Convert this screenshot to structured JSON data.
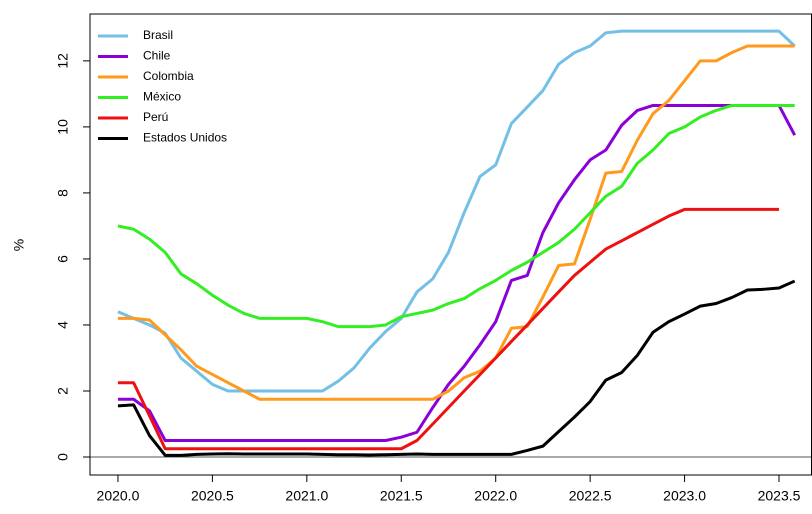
{
  "chart_data": {
    "type": "line",
    "y_label": "%",
    "x": [
      2020,
      2020.083,
      2020.167,
      2020.25,
      2020.333,
      2020.417,
      2020.5,
      2020.583,
      2020.667,
      2020.75,
      2020.833,
      2020.917,
      2021,
      2021.083,
      2021.167,
      2021.25,
      2021.333,
      2021.417,
      2021.5,
      2021.583,
      2021.667,
      2021.75,
      2021.833,
      2021.917,
      2022,
      2022.083,
      2022.167,
      2022.25,
      2022.333,
      2022.417,
      2022.5,
      2022.583,
      2022.667,
      2022.75,
      2022.833,
      2022.917,
      2023,
      2023.083,
      2023.167,
      2023.25,
      2023.333,
      2023.417,
      2023.5,
      2023.583
    ],
    "series": [
      {
        "name": "Brasil",
        "color": "#74bfe6",
        "values": [
          4.4,
          4.2,
          4.0,
          3.75,
          3.0,
          2.6,
          2.2,
          2.0,
          2.0,
          2.0,
          2.0,
          2.0,
          2.0,
          2.0,
          2.3,
          2.7,
          3.3,
          3.8,
          4.2,
          5.0,
          5.4,
          6.2,
          7.4,
          8.5,
          8.85,
          10.1,
          10.6,
          11.1,
          11.9,
          12.25,
          12.45,
          12.85,
          12.9,
          12.9,
          12.9,
          12.9,
          12.9,
          12.9,
          12.9,
          12.9,
          12.9,
          12.9,
          12.9,
          12.45
        ]
      },
      {
        "name": "Chile",
        "color": "#8b00d6",
        "values": [
          1.75,
          1.75,
          1.4,
          0.5,
          0.5,
          0.5,
          0.5,
          0.5,
          0.5,
          0.5,
          0.5,
          0.5,
          0.5,
          0.5,
          0.5,
          0.5,
          0.5,
          0.5,
          0.6,
          0.75,
          1.5,
          2.2,
          2.75,
          3.4,
          4.1,
          5.35,
          5.5,
          6.8,
          7.7,
          8.4,
          9.0,
          9.3,
          10.05,
          10.5,
          10.65,
          10.65,
          10.65,
          10.65,
          10.65,
          10.65,
          10.65,
          10.65,
          10.65,
          9.75
        ]
      },
      {
        "name": "Colombia",
        "color": "#ff9a1c",
        "values": [
          4.2,
          4.2,
          4.15,
          3.7,
          3.25,
          2.75,
          2.5,
          2.25,
          2.0,
          1.75,
          1.75,
          1.75,
          1.75,
          1.75,
          1.75,
          1.75,
          1.75,
          1.75,
          1.75,
          1.75,
          1.75,
          2.0,
          2.4,
          2.6,
          3.0,
          3.9,
          3.95,
          4.85,
          5.8,
          5.85,
          7.2,
          8.6,
          8.65,
          9.6,
          10.4,
          10.8,
          11.4,
          12.0,
          12.0,
          12.25,
          12.45,
          12.45,
          12.45,
          12.45
        ]
      },
      {
        "name": "México",
        "color": "#33ee22",
        "values": [
          7.0,
          6.9,
          6.6,
          6.2,
          5.55,
          5.25,
          4.9,
          4.6,
          4.35,
          4.2,
          4.2,
          4.2,
          4.2,
          4.1,
          3.95,
          3.95,
          3.95,
          4.0,
          4.25,
          4.35,
          4.45,
          4.65,
          4.8,
          5.1,
          5.35,
          5.65,
          5.9,
          6.2,
          6.5,
          6.9,
          7.4,
          7.9,
          8.2,
          8.9,
          9.3,
          9.8,
          10.0,
          10.3,
          10.5,
          10.65,
          10.65,
          10.65,
          10.65,
          10.65
        ]
      },
      {
        "name": "Perú",
        "color": "#ee1111",
        "values": [
          2.25,
          2.25,
          1.25,
          0.25,
          0.25,
          0.25,
          0.25,
          0.25,
          0.25,
          0.25,
          0.25,
          0.25,
          0.25,
          0.25,
          0.25,
          0.25,
          0.25,
          0.25,
          0.25,
          0.5,
          1.0,
          1.5,
          2.0,
          2.5,
          3.0,
          3.5,
          4.0,
          4.5,
          5.0,
          5.5,
          5.9,
          6.3,
          6.55,
          6.8,
          7.05,
          7.3,
          7.5,
          7.5,
          7.5,
          7.5,
          7.5,
          7.5,
          7.5,
          null
        ]
      },
      {
        "name": "Estados Unidos",
        "color": "#000000",
        "values": [
          1.55,
          1.58,
          0.65,
          0.05,
          0.05,
          0.08,
          0.09,
          0.1,
          0.09,
          0.09,
          0.09,
          0.09,
          0.09,
          0.08,
          0.07,
          0.07,
          0.06,
          0.07,
          0.08,
          0.09,
          0.08,
          0.08,
          0.08,
          0.08,
          0.08,
          0.08,
          0.2,
          0.33,
          0.77,
          1.21,
          1.68,
          2.33,
          2.56,
          3.08,
          3.78,
          4.1,
          4.33,
          4.57,
          4.65,
          4.83,
          5.06,
          5.08,
          5.12,
          5.33
        ]
      }
    ],
    "xlim": [
      2019.852,
      2023.672
    ],
    "ylim": [
      -0.545,
      13.42
    ],
    "xticks": [
      {
        "value": 2020,
        "label": "2020.0"
      },
      2020.5,
      {
        "value": 2021,
        "label": "2021.0"
      },
      2021.5,
      {
        "value": 2022,
        "label": "2022.0"
      },
      2022.5,
      {
        "value": 2023,
        "label": "2023.0"
      },
      2023.5
    ],
    "yticks": [
      0,
      2,
      4,
      6,
      8,
      10,
      12
    ],
    "zero_line": true,
    "legend": "top-left"
  }
}
